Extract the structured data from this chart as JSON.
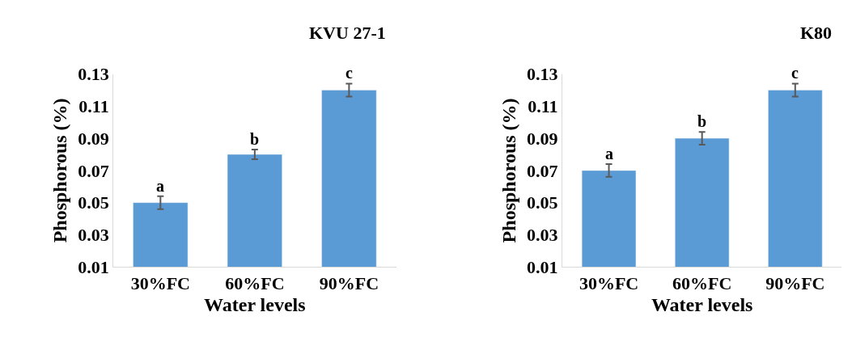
{
  "chart_data": [
    {
      "type": "bar",
      "title": "KVU 27-1",
      "xlabel": "Water levels",
      "ylabel": "Phosphorous (%)",
      "categories": [
        "30%FC",
        "60%FC",
        "90%FC"
      ],
      "values": [
        0.05,
        0.08,
        0.12
      ],
      "errors": [
        0.004,
        0.003,
        0.004
      ],
      "color": "#5b9bd5",
      "ylim": [
        0.01,
        0.13
      ],
      "yticks": [
        0.01,
        0.03,
        0.05,
        0.07,
        0.09,
        0.11,
        0.13
      ],
      "annotations": [
        {
          "text": "a",
          "x": "30%FC",
          "y": 0.054
        },
        {
          "text": "b",
          "x": "60%FC",
          "y": 0.083
        },
        {
          "text": "c",
          "x": "90%FC",
          "y": 0.124
        }
      ]
    },
    {
      "type": "bar",
      "title": "K80",
      "xlabel": "Water levels",
      "ylabel": "Phosphorous (%)",
      "categories": [
        "30%FC",
        "60%FC",
        "90%FC"
      ],
      "values": [
        0.07,
        0.09,
        0.12
      ],
      "errors": [
        0.004,
        0.004,
        0.004
      ],
      "color": "#5b9bd5",
      "ylim": [
        0.01,
        0.13
      ],
      "yticks": [
        0.01,
        0.03,
        0.05,
        0.07,
        0.09,
        0.11,
        0.13
      ],
      "annotations": [
        {
          "text": "a",
          "x": "30%FC",
          "y": 0.074
        },
        {
          "text": "b",
          "x": "60%FC",
          "y": 0.094
        },
        {
          "text": "c",
          "x": "90%FC",
          "y": 0.124
        }
      ]
    }
  ]
}
